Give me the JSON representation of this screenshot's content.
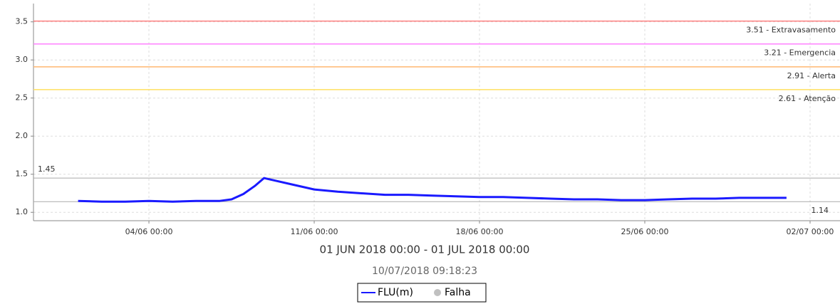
{
  "chart_data": {
    "type": "line",
    "subtitle": "01 JUN 2018 00:00 - 01 JUL 2018 00:00",
    "timestamp": "10/07/2018 09:18:23",
    "x": [
      "2018-06-01T00:00",
      "2018-06-02T00:00",
      "2018-06-03T00:00",
      "2018-06-04T00:00",
      "2018-06-05T00:00",
      "2018-06-06T00:00",
      "2018-06-07T00:00",
      "2018-06-07T12:00",
      "2018-06-08T00:00",
      "2018-06-08T12:00",
      "2018-06-08T21:00",
      "2018-06-09T00:00",
      "2018-06-10T00:00",
      "2018-06-11T00:00",
      "2018-06-12T00:00",
      "2018-06-13T00:00",
      "2018-06-14T00:00",
      "2018-06-15T00:00",
      "2018-06-16T00:00",
      "2018-06-17T00:00",
      "2018-06-18T00:00",
      "2018-06-19T00:00",
      "2018-06-20T00:00",
      "2018-06-21T00:00",
      "2018-06-22T00:00",
      "2018-06-23T00:00",
      "2018-06-24T00:00",
      "2018-06-25T00:00",
      "2018-06-26T00:00",
      "2018-06-27T00:00",
      "2018-06-28T00:00",
      "2018-06-29T00:00",
      "2018-06-30T00:00",
      "2018-07-01T00:00"
    ],
    "series": [
      {
        "name": "FLU(m)",
        "color": "#1a1aff",
        "values": [
          1.15,
          1.14,
          1.14,
          1.15,
          1.14,
          1.15,
          1.15,
          1.17,
          1.24,
          1.35,
          1.45,
          1.44,
          1.37,
          1.3,
          1.27,
          1.25,
          1.23,
          1.23,
          1.22,
          1.21,
          1.2,
          1.2,
          1.19,
          1.18,
          1.17,
          1.17,
          1.16,
          1.16,
          1.17,
          1.18,
          1.18,
          1.19,
          1.19,
          1.19
        ]
      }
    ],
    "failure_legend": {
      "name": "Falha",
      "color": "#c0c0c0"
    },
    "thresholds": [
      {
        "value": 3.51,
        "label": "3.51 - Extravasamento",
        "color": "#ff8080"
      },
      {
        "value": 3.21,
        "label": "3.21 - Emergencia",
        "color": "#ff80ff"
      },
      {
        "value": 2.91,
        "label": "2.91 - Alerta",
        "color": "#ffb870"
      },
      {
        "value": 2.61,
        "label": "2.61 - Atenção",
        "color": "#ffe060"
      }
    ],
    "reference_lines": [
      {
        "value": 1.45,
        "label": "1.45",
        "side": "left",
        "color": "#aaaaaa"
      },
      {
        "value": 1.14,
        "label": "1.14",
        "side": "right",
        "color": "#aaaaaa"
      }
    ],
    "xlim": [
      "2018-05-30T02:40",
      "2018-07-03T06:25"
    ],
    "xticks": [
      {
        "value": "2018-06-04T00:00",
        "label": "04/06 00:00"
      },
      {
        "value": "2018-06-11T00:00",
        "label": "11/06 00:00"
      },
      {
        "value": "2018-06-18T00:00",
        "label": "18/06 00:00"
      },
      {
        "value": "2018-06-25T00:00",
        "label": "25/06 00:00"
      },
      {
        "value": "2018-07-02T00:00",
        "label": "02/07 00:00"
      }
    ],
    "ylim": [
      0.89,
      3.74
    ],
    "yticks": [
      {
        "value": 1,
        "label": "1.0"
      },
      1.5,
      {
        "value": 2,
        "label": "2.0"
      },
      2.5,
      {
        "value": 3,
        "label": "3.0"
      },
      3.5
    ],
    "grid": true
  }
}
